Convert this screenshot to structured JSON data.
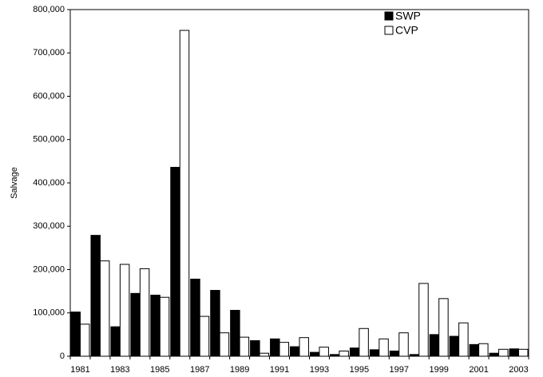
{
  "chart_data": {
    "type": "bar",
    "y_label": "Salvage",
    "categories": [
      "1981",
      null,
      "1983",
      null,
      "1985",
      null,
      "1987",
      null,
      "1989",
      null,
      "1991",
      null,
      "1993",
      null,
      "1995",
      null,
      "1997",
      null,
      "1999",
      null,
      "2001",
      null,
      "2003"
    ],
    "series": [
      {
        "name": "SWP",
        "color": "#000000",
        "values": [
          102000,
          279000,
          68000,
          145000,
          141000,
          436000,
          178000,
          152000,
          106000,
          36000,
          40000,
          22000,
          9000,
          4000,
          19000,
          15000,
          12000,
          4000,
          50000,
          46000,
          27000,
          7000,
          17000
        ]
      },
      {
        "name": "CVP",
        "color": "#ffffff",
        "values": [
          74000,
          220000,
          212000,
          202000,
          136000,
          752000,
          92000,
          54000,
          44000,
          7000,
          32000,
          43000,
          21000,
          12000,
          64000,
          40000,
          54000,
          168000,
          133000,
          77000,
          29000,
          16000,
          16000
        ]
      }
    ],
    "ylim": [
      0,
      800000
    ],
    "yticks": [
      0,
      {
        "value": 100000,
        "label": "100,000"
      },
      {
        "value": 200000,
        "label": "200,000"
      },
      {
        "value": 300000,
        "label": "300,000"
      },
      {
        "value": 400000,
        "label": "400,000"
      },
      {
        "value": 500000,
        "label": "500,000"
      },
      {
        "value": 600000,
        "label": "600,000"
      },
      {
        "value": 700000,
        "label": "700,000"
      },
      {
        "value": 800000,
        "label": "800,000"
      }
    ],
    "grid": false,
    "legend_position": "upper right"
  }
}
